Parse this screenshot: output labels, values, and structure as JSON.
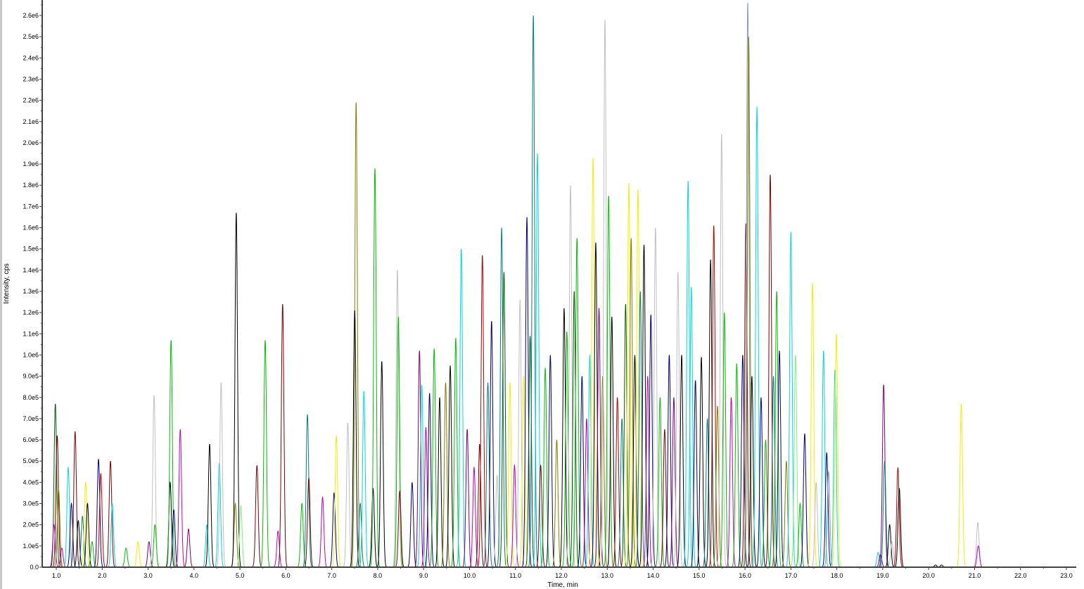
{
  "chart_data": {
    "type": "line",
    "title": "",
    "xlabel": "Time, min",
    "ylabel": "Intensity, cps",
    "xlim": [
      0.7,
      23.2
    ],
    "ylim": [
      0,
      2600000
    ],
    "grid": false,
    "x_ticks": [
      "1.0",
      "2.0",
      "3.0",
      "4.0",
      "5.0",
      "6.0",
      "7.0",
      "8.0",
      "9.0",
      "10.0",
      "11.0",
      "12.0",
      "13.0",
      "14.0",
      "15.0",
      "16.0",
      "17.0",
      "18.0",
      "19.0",
      "20.0",
      "21.0",
      "22.0",
      "23.0"
    ],
    "y_ticks": [
      "0.0",
      "1.0e5",
      "2.0e5",
      "3.0e5",
      "4.0e5",
      "5.0e5",
      "6.0e5",
      "7.0e5",
      "8.0e5",
      "9.0e5",
      "1.0e6",
      "1.1e6",
      "1.2e6",
      "1.3e6",
      "1.4e6",
      "1.5e6",
      "1.6e6",
      "1.7e6",
      "1.8e6",
      "1.9e6",
      "2.0e6",
      "2.1e6",
      "2.2e6",
      "2.3e6",
      "2.4e6",
      "2.5e6",
      "2.6e6"
    ],
    "colors": {
      "k": "#000000",
      "n": "#000080",
      "g": "#00c000",
      "c": "#00d8e0",
      "m": "#c000c0",
      "y": "#f0f000",
      "l": "#c0c0c0",
      "r": "#c00000",
      "br": "#800000",
      "o": "#808000",
      "t": "#008080",
      "p": "#800080",
      "lg": "#80f080",
      "bg": "#8898c8",
      "dg": "#006000"
    },
    "peaks_note_format": [
      "time_min",
      "intensity_cps",
      "color"
    ],
    "peaks": [
      [
        0.98,
        770000,
        "dg"
      ],
      [
        1.02,
        620000,
        "br"
      ],
      [
        0.95,
        200000,
        "m"
      ],
      [
        1.05,
        370000,
        "o"
      ],
      [
        1.12,
        90000,
        "m"
      ],
      [
        1.26,
        470000,
        "c"
      ],
      [
        1.33,
        300000,
        "n"
      ],
      [
        1.41,
        640000,
        "br"
      ],
      [
        1.48,
        220000,
        "k"
      ],
      [
        1.57,
        240000,
        "t"
      ],
      [
        1.64,
        400000,
        "y"
      ],
      [
        1.68,
        300000,
        "k"
      ],
      [
        1.78,
        120000,
        "g"
      ],
      [
        1.92,
        510000,
        "n"
      ],
      [
        1.97,
        440000,
        "r"
      ],
      [
        2.18,
        500000,
        "br"
      ],
      [
        2.22,
        300000,
        "c"
      ],
      [
        2.52,
        90000,
        "g"
      ],
      [
        2.78,
        120000,
        "y"
      ],
      [
        3.02,
        120000,
        "p"
      ],
      [
        3.13,
        810000,
        "l"
      ],
      [
        3.15,
        200000,
        "g"
      ],
      [
        3.48,
        400000,
        "k"
      ],
      [
        3.5,
        1070000,
        "g"
      ],
      [
        3.56,
        270000,
        "n"
      ],
      [
        3.7,
        650000,
        "m"
      ],
      [
        3.88,
        180000,
        "p"
      ],
      [
        4.28,
        200000,
        "c"
      ],
      [
        4.34,
        580000,
        "k"
      ],
      [
        4.55,
        490000,
        "c"
      ],
      [
        4.59,
        870000,
        "l"
      ],
      [
        4.9,
        300000,
        "o"
      ],
      [
        4.92,
        1670000,
        "k"
      ],
      [
        5.02,
        290000,
        "lg"
      ],
      [
        5.37,
        480000,
        "br"
      ],
      [
        5.55,
        1070000,
        "g"
      ],
      [
        5.83,
        170000,
        "m"
      ],
      [
        5.93,
        1240000,
        "br"
      ],
      [
        6.35,
        300000,
        "g"
      ],
      [
        6.47,
        720000,
        "t"
      ],
      [
        6.5,
        420000,
        "br"
      ],
      [
        6.8,
        330000,
        "m"
      ],
      [
        7.05,
        350000,
        "n"
      ],
      [
        7.1,
        620000,
        "y"
      ],
      [
        7.35,
        680000,
        "l"
      ],
      [
        7.53,
        2190000,
        "o"
      ],
      [
        7.5,
        1210000,
        "k"
      ],
      [
        7.62,
        300000,
        "t"
      ],
      [
        7.7,
        830000,
        "c"
      ],
      [
        7.9,
        370000,
        "k"
      ],
      [
        7.94,
        1880000,
        "g"
      ],
      [
        8.09,
        970000,
        "k"
      ],
      [
        8.43,
        1400000,
        "l"
      ],
      [
        8.45,
        1180000,
        "g"
      ],
      [
        8.48,
        360000,
        "br"
      ],
      [
        8.75,
        400000,
        "n"
      ],
      [
        8.91,
        1020000,
        "p"
      ],
      [
        8.96,
        860000,
        "c"
      ],
      [
        9.05,
        660000,
        "m"
      ],
      [
        9.13,
        820000,
        "n"
      ],
      [
        9.23,
        1030000,
        "g"
      ],
      [
        9.35,
        800000,
        "k"
      ],
      [
        9.48,
        870000,
        "o"
      ],
      [
        9.58,
        950000,
        "k"
      ],
      [
        9.7,
        1080000,
        "g"
      ],
      [
        9.82,
        1500000,
        "c"
      ],
      [
        9.95,
        650000,
        "p"
      ],
      [
        10.1,
        470000,
        "m"
      ],
      [
        10.22,
        580000,
        "br"
      ],
      [
        10.28,
        1470000,
        "r"
      ],
      [
        10.4,
        870000,
        "t"
      ],
      [
        10.48,
        1160000,
        "n"
      ],
      [
        10.6,
        430000,
        "l"
      ],
      [
        10.7,
        1600000,
        "t"
      ],
      [
        10.75,
        1390000,
        "dg"
      ],
      [
        10.88,
        870000,
        "y"
      ],
      [
        10.98,
        480000,
        "m"
      ],
      [
        11.1,
        1260000,
        "l"
      ],
      [
        11.18,
        900000,
        "y"
      ],
      [
        11.25,
        1650000,
        "n"
      ],
      [
        11.32,
        1090000,
        "dg"
      ],
      [
        11.39,
        2600000,
        "t"
      ],
      [
        11.48,
        1950000,
        "c"
      ],
      [
        11.55,
        480000,
        "br"
      ],
      [
        11.65,
        940000,
        "g"
      ],
      [
        11.76,
        1000000,
        "n"
      ],
      [
        11.9,
        600000,
        "o"
      ],
      [
        12.06,
        1220000,
        "k"
      ],
      [
        12.12,
        1110000,
        "g"
      ],
      [
        12.2,
        1800000,
        "l"
      ],
      [
        12.28,
        1300000,
        "dg"
      ],
      [
        12.34,
        1550000,
        "g"
      ],
      [
        12.45,
        900000,
        "n"
      ],
      [
        12.55,
        700000,
        "m"
      ],
      [
        12.62,
        1000000,
        "c"
      ],
      [
        12.69,
        1930000,
        "y"
      ],
      [
        12.75,
        1530000,
        "k"
      ],
      [
        12.82,
        1220000,
        "p"
      ],
      [
        12.9,
        900000,
        "o"
      ],
      [
        12.95,
        2580000,
        "l"
      ],
      [
        13.03,
        1750000,
        "g"
      ],
      [
        13.1,
        1180000,
        "k"
      ],
      [
        13.22,
        800000,
        "r"
      ],
      [
        13.32,
        700000,
        "t"
      ],
      [
        13.4,
        1240000,
        "dg"
      ],
      [
        13.47,
        1810000,
        "y"
      ],
      [
        13.52,
        1550000,
        "o"
      ],
      [
        13.6,
        1000000,
        "k"
      ],
      [
        13.67,
        1780000,
        "y"
      ],
      [
        13.72,
        1300000,
        "t"
      ],
      [
        13.8,
        1520000,
        "k"
      ],
      [
        13.88,
        900000,
        "m"
      ],
      [
        13.95,
        1190000,
        "n"
      ],
      [
        14.05,
        1600000,
        "l"
      ],
      [
        14.15,
        800000,
        "g"
      ],
      [
        14.25,
        650000,
        "br"
      ],
      [
        14.35,
        1000000,
        "n"
      ],
      [
        14.45,
        800000,
        "p"
      ],
      [
        14.54,
        1390000,
        "l"
      ],
      [
        14.62,
        1000000,
        "k"
      ],
      [
        14.76,
        1820000,
        "c"
      ],
      [
        14.83,
        1320000,
        "c"
      ],
      [
        14.92,
        880000,
        "n"
      ],
      [
        15.05,
        990000,
        "k"
      ],
      [
        15.18,
        700000,
        "t"
      ],
      [
        15.25,
        1450000,
        "k"
      ],
      [
        15.32,
        1610000,
        "r"
      ],
      [
        15.4,
        760000,
        "o"
      ],
      [
        15.49,
        2040000,
        "l"
      ],
      [
        15.55,
        1200000,
        "g"
      ],
      [
        15.7,
        800000,
        "m"
      ],
      [
        15.82,
        960000,
        "g"
      ],
      [
        15.95,
        1000000,
        "n"
      ],
      [
        16.02,
        1620000,
        "br"
      ],
      [
        16.06,
        2660000,
        "bg"
      ],
      [
        16.08,
        2500000,
        "o"
      ],
      [
        16.15,
        900000,
        "k"
      ],
      [
        16.26,
        2170000,
        "c"
      ],
      [
        16.35,
        800000,
        "n"
      ],
      [
        16.45,
        600000,
        "g"
      ],
      [
        16.55,
        1850000,
        "br"
      ],
      [
        16.62,
        900000,
        "t"
      ],
      [
        16.69,
        1300000,
        "g"
      ],
      [
        16.75,
        1020000,
        "n"
      ],
      [
        16.9,
        500000,
        "o"
      ],
      [
        17.0,
        1580000,
        "c"
      ],
      [
        17.1,
        1000000,
        "lg"
      ],
      [
        17.2,
        300000,
        "g"
      ],
      [
        17.3,
        630000,
        "n"
      ],
      [
        17.47,
        1340000,
        "y"
      ],
      [
        17.55,
        400000,
        "l"
      ],
      [
        17.71,
        1020000,
        "c"
      ],
      [
        17.78,
        540000,
        "n"
      ],
      [
        17.82,
        450000,
        "bg"
      ],
      [
        17.96,
        930000,
        "c"
      ],
      [
        17.99,
        1100000,
        "y"
      ],
      [
        18.9,
        70000,
        "c"
      ],
      [
        18.95,
        60000,
        "p"
      ],
      [
        19.02,
        860000,
        "p"
      ],
      [
        19.04,
        500000,
        "t"
      ],
      [
        19.15,
        200000,
        "k"
      ],
      [
        19.2,
        120000,
        "l"
      ],
      [
        19.33,
        470000,
        "r"
      ],
      [
        19.36,
        370000,
        "k"
      ],
      [
        20.15,
        10000,
        "k"
      ],
      [
        20.28,
        10000,
        "k"
      ],
      [
        20.71,
        770000,
        "y"
      ],
      [
        21.07,
        210000,
        "l"
      ],
      [
        21.08,
        100000,
        "m"
      ]
    ]
  }
}
